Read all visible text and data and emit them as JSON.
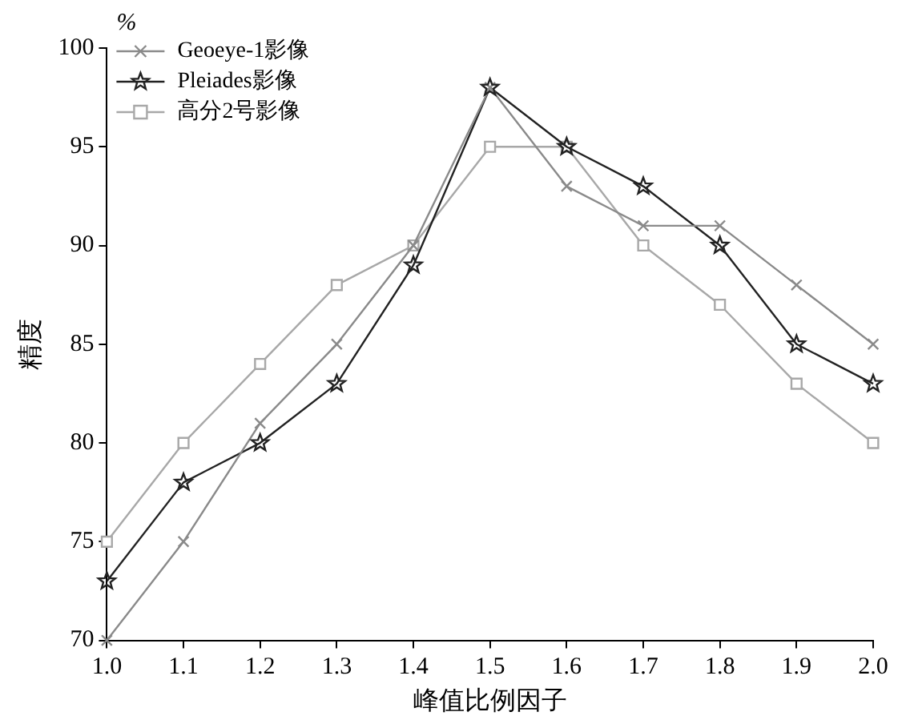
{
  "chart_data": {
    "type": "line",
    "xlabel": "峰值比例因子",
    "ylabel": "精度",
    "annotations": [
      "%"
    ],
    "x": [
      1.0,
      1.1,
      1.2,
      1.3,
      1.4,
      1.5,
      1.6,
      1.7,
      1.8,
      1.9,
      2.0
    ],
    "xlim": [
      1.0,
      2.0
    ],
    "xticks": [
      {
        "value": 1.0,
        "label": "1.0"
      },
      1.1,
      1.2,
      1.3,
      1.4,
      1.5,
      1.6,
      1.7,
      1.8,
      1.9,
      {
        "value": 2.0,
        "label": "2.0"
      }
    ],
    "ylim": [
      70,
      100
    ],
    "yticks": [
      70,
      75,
      80,
      85,
      90,
      95,
      100
    ],
    "grid": false,
    "legend": "top left",
    "line_style": "solid",
    "series": [
      {
        "name": "Geoeye-1影像",
        "color": "#8a8a8a",
        "marker": "cross",
        "values": [
          70,
          75,
          81,
          85,
          90,
          98,
          93,
          91,
          91,
          88,
          85
        ]
      },
      {
        "name": "Pleiades影像",
        "color": "#222222",
        "marker": "star",
        "values": [
          73,
          78,
          80,
          83,
          89,
          98,
          95,
          93,
          90,
          85,
          83
        ]
      },
      {
        "name": "高分2号影像",
        "color": "#a8a8a8",
        "marker": "square",
        "values": [
          75,
          80,
          84,
          88,
          90,
          95,
          95,
          90,
          87,
          83,
          80
        ]
      }
    ]
  }
}
